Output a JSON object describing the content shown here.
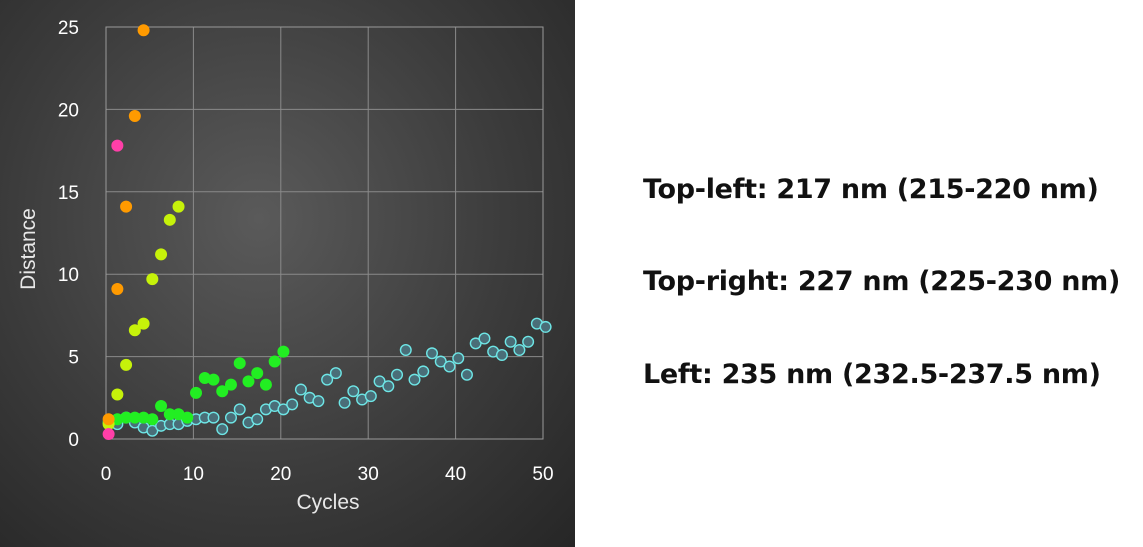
{
  "chart_data": {
    "type": "scatter",
    "xlabel": "Cycles",
    "ylabel": "Distance",
    "xlim": [
      0,
      50
    ],
    "ylim": [
      0,
      25
    ],
    "x_ticks": [
      0,
      10,
      20,
      30,
      40,
      50
    ],
    "y_ticks": [
      0,
      5,
      10,
      15,
      20,
      25
    ],
    "grid": true,
    "series": [
      {
        "color": "#ff3fa8",
        "outline": "#ff3fa8",
        "points": [
          [
            0.3,
            0.3
          ],
          [
            1.3,
            17.8
          ]
        ]
      },
      {
        "color": "#ff9a00",
        "outline": "#ff9a00",
        "points": [
          [
            0.3,
            1.2
          ],
          [
            1.3,
            9.1
          ],
          [
            2.3,
            14.1
          ],
          [
            3.3,
            19.6
          ],
          [
            4.3,
            24.8
          ]
        ]
      },
      {
        "color": "#c6f20a",
        "outline": "#c6f20a",
        "points": [
          [
            0.3,
            0.9
          ],
          [
            1.3,
            2.7
          ],
          [
            2.3,
            4.5
          ],
          [
            3.3,
            6.6
          ],
          [
            4.3,
            7.0
          ],
          [
            5.3,
            9.7
          ],
          [
            6.3,
            11.2
          ],
          [
            7.3,
            13.3
          ],
          [
            8.3,
            14.1
          ]
        ]
      },
      {
        "color": "#22ee22",
        "outline": "#22ee22",
        "points": [
          [
            0.3,
            1.0
          ],
          [
            1.3,
            1.2
          ],
          [
            2.3,
            1.3
          ],
          [
            3.3,
            1.3
          ],
          [
            4.3,
            1.3
          ],
          [
            5.3,
            1.2
          ],
          [
            6.3,
            2.0
          ],
          [
            7.3,
            1.5
          ],
          [
            8.3,
            1.5
          ],
          [
            9.3,
            1.3
          ],
          [
            10.3,
            2.8
          ],
          [
            11.3,
            3.7
          ],
          [
            12.3,
            3.6
          ],
          [
            13.3,
            2.9
          ],
          [
            14.3,
            3.3
          ],
          [
            15.3,
            4.6
          ],
          [
            16.3,
            3.5
          ],
          [
            17.3,
            4.0
          ],
          [
            18.3,
            3.3
          ],
          [
            19.3,
            4.7
          ],
          [
            20.3,
            5.3
          ]
        ]
      },
      {
        "color": "#4a6e78",
        "outline": "#6ee6e6",
        "points": [
          [
            0.3,
            1.0
          ],
          [
            1.3,
            0.9
          ],
          [
            2.3,
            1.3
          ],
          [
            3.3,
            1.0
          ],
          [
            4.3,
            0.7
          ],
          [
            5.3,
            0.5
          ],
          [
            6.3,
            0.8
          ],
          [
            7.3,
            0.9
          ],
          [
            8.3,
            0.9
          ],
          [
            9.3,
            1.1
          ],
          [
            10.3,
            1.2
          ],
          [
            11.3,
            1.3
          ],
          [
            12.3,
            1.3
          ],
          [
            13.3,
            0.6
          ],
          [
            14.3,
            1.3
          ],
          [
            15.3,
            1.8
          ],
          [
            16.3,
            1.0
          ],
          [
            17.3,
            1.2
          ],
          [
            18.3,
            1.8
          ],
          [
            19.3,
            2.0
          ],
          [
            20.3,
            1.8
          ],
          [
            21.3,
            2.1
          ],
          [
            22.3,
            3.0
          ],
          [
            23.3,
            2.5
          ],
          [
            24.3,
            2.3
          ],
          [
            25.3,
            3.6
          ],
          [
            26.3,
            4.0
          ],
          [
            27.3,
            2.2
          ],
          [
            28.3,
            2.9
          ],
          [
            29.3,
            2.4
          ],
          [
            30.3,
            2.6
          ],
          [
            31.3,
            3.5
          ],
          [
            32.3,
            3.2
          ],
          [
            33.3,
            3.9
          ],
          [
            34.3,
            5.4
          ],
          [
            35.3,
            3.6
          ],
          [
            36.3,
            4.1
          ],
          [
            37.3,
            5.2
          ],
          [
            38.3,
            4.7
          ],
          [
            39.3,
            4.4
          ],
          [
            40.3,
            4.9
          ],
          [
            41.3,
            3.9
          ],
          [
            42.3,
            5.8
          ],
          [
            43.3,
            6.1
          ],
          [
            44.3,
            5.3
          ],
          [
            45.3,
            5.1
          ],
          [
            46.3,
            5.9
          ],
          [
            47.3,
            5.4
          ],
          [
            48.3,
            5.9
          ],
          [
            49.3,
            7.0
          ],
          [
            50.3,
            6.8
          ]
        ]
      }
    ]
  },
  "notes": [
    "Top-left: 217 nm (215-220 nm)",
    "Top-right: 227 nm (225-230 nm)",
    "Left: 235 nm (232.5-237.5 nm)"
  ]
}
